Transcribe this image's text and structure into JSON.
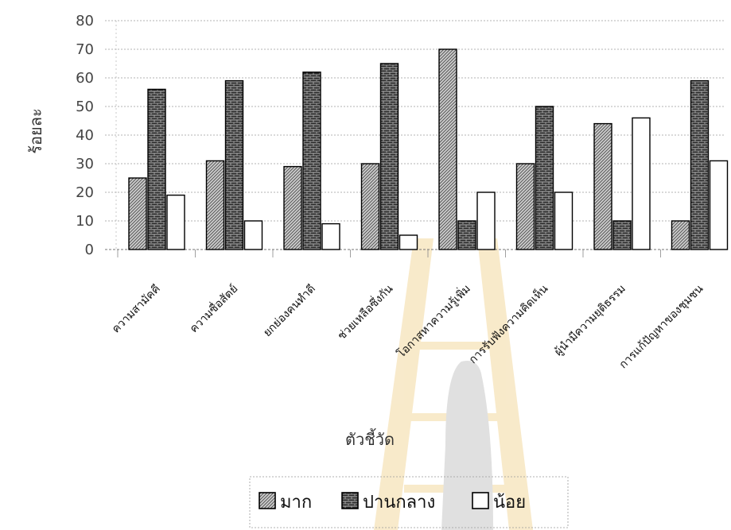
{
  "chart_data": {
    "type": "bar",
    "xlabel": "ตัวชี้วัด",
    "ylabel": "ร้อยละ",
    "ylim": [
      0,
      80
    ],
    "yticks": [
      0,
      10,
      20,
      30,
      40,
      50,
      60,
      70,
      80
    ],
    "grid": "horizontal-dotted",
    "legend_position": "bottom",
    "categories": [
      "ความสามัคคี",
      "ความซื่อสัตย์",
      "ยกย่องคนทำดี",
      "ช่วยเหลือซึ่งกัน",
      "โอกาสหาความรู้เพิ่ม",
      "การรับฟังความคิดเห็น",
      "ผู้นำมีความยุติธรรม",
      "การแก้ปัญหาของชุมชน"
    ],
    "series": [
      {
        "name": "มาก",
        "pattern": "light-hatch",
        "values": [
          25,
          31,
          29,
          30,
          70,
          30,
          44,
          10
        ]
      },
      {
        "name": "ปานกลาง",
        "pattern": "dark-brick",
        "values": [
          56,
          59,
          62,
          65,
          10,
          50,
          10,
          59
        ]
      },
      {
        "name": "น้อย",
        "pattern": "white",
        "values": [
          19,
          10,
          9,
          5,
          20,
          20,
          46,
          31
        ]
      }
    ]
  }
}
